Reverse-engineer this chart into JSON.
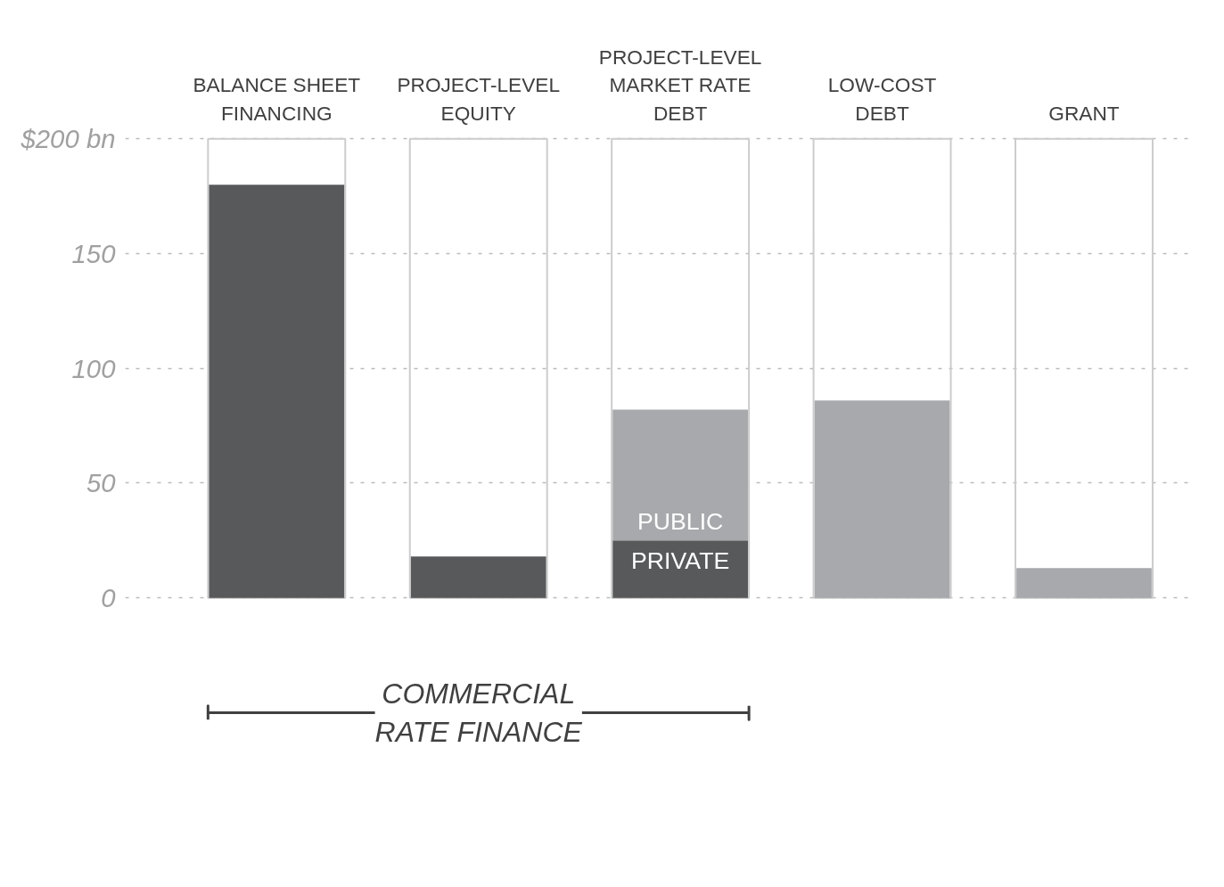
{
  "chart_data": {
    "type": "bar",
    "stacked": true,
    "categories": [
      "BALANCE SHEET\nFINANCING",
      "PROJECT-LEVEL\nEQUITY",
      "PROJECT-LEVEL\nMARKET RATE\nDEBT",
      "LOW-COST\nDEBT",
      "GRANT"
    ],
    "series": [
      {
        "name": "PRIVATE",
        "color": "#58595b",
        "values": [
          180,
          18,
          25,
          0,
          0
        ]
      },
      {
        "name": "PUBLIC",
        "color": "#a7a9ac",
        "values": [
          0,
          0,
          57,
          86,
          13
        ]
      }
    ],
    "ylim": [
      0,
      200
    ],
    "yticks": [
      0,
      50,
      100,
      150,
      {
        "value": 200,
        "label": "$200 bn"
      }
    ],
    "grid": "y",
    "legend": false,
    "annotations": [
      "COMMERCIAL\nRATE FINANCE"
    ]
  }
}
